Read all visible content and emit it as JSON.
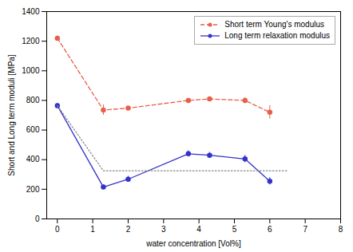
{
  "chart_data": {
    "type": "line",
    "xlabel": "water concentration [Vol%]",
    "ylabel": "Short and Long term moduli [MPa]",
    "xlim": [
      -0.3,
      8
    ],
    "ylim": [
      0,
      1400
    ],
    "xticks": [
      0,
      1,
      2,
      3,
      4,
      5,
      6,
      7,
      8
    ],
    "yticks": [
      0,
      200,
      400,
      600,
      800,
      1000,
      1200,
      1400
    ],
    "grid": false,
    "legend": "upper right",
    "series": [
      {
        "name": "Short term Young's modulus",
        "color": "#e8604c",
        "line_style": "dashed",
        "marker": "circle",
        "x": [
          0,
          1.3,
          2.0,
          3.7,
          4.3,
          5.3,
          6.0
        ],
        "values": [
          1220,
          735,
          748,
          800,
          810,
          800,
          720
        ],
        "yerr": [
          15,
          35,
          10,
          12,
          12,
          20,
          45
        ]
      },
      {
        "name": "Long term relaxation modulus",
        "color": "#3333cc",
        "line_style": "solid",
        "marker": "circle",
        "x": [
          0,
          1.3,
          2.0,
          3.7,
          4.3,
          5.3,
          6.0
        ],
        "values": [
          765,
          215,
          268,
          440,
          430,
          405,
          255
        ],
        "yerr": [
          15,
          15,
          20,
          20,
          20,
          25,
          25
        ]
      },
      {
        "color": "#888888",
        "line_style": "dotted",
        "x": [
          0,
          1.3,
          6.5
        ],
        "values": [
          765,
          325,
          325
        ]
      }
    ]
  }
}
